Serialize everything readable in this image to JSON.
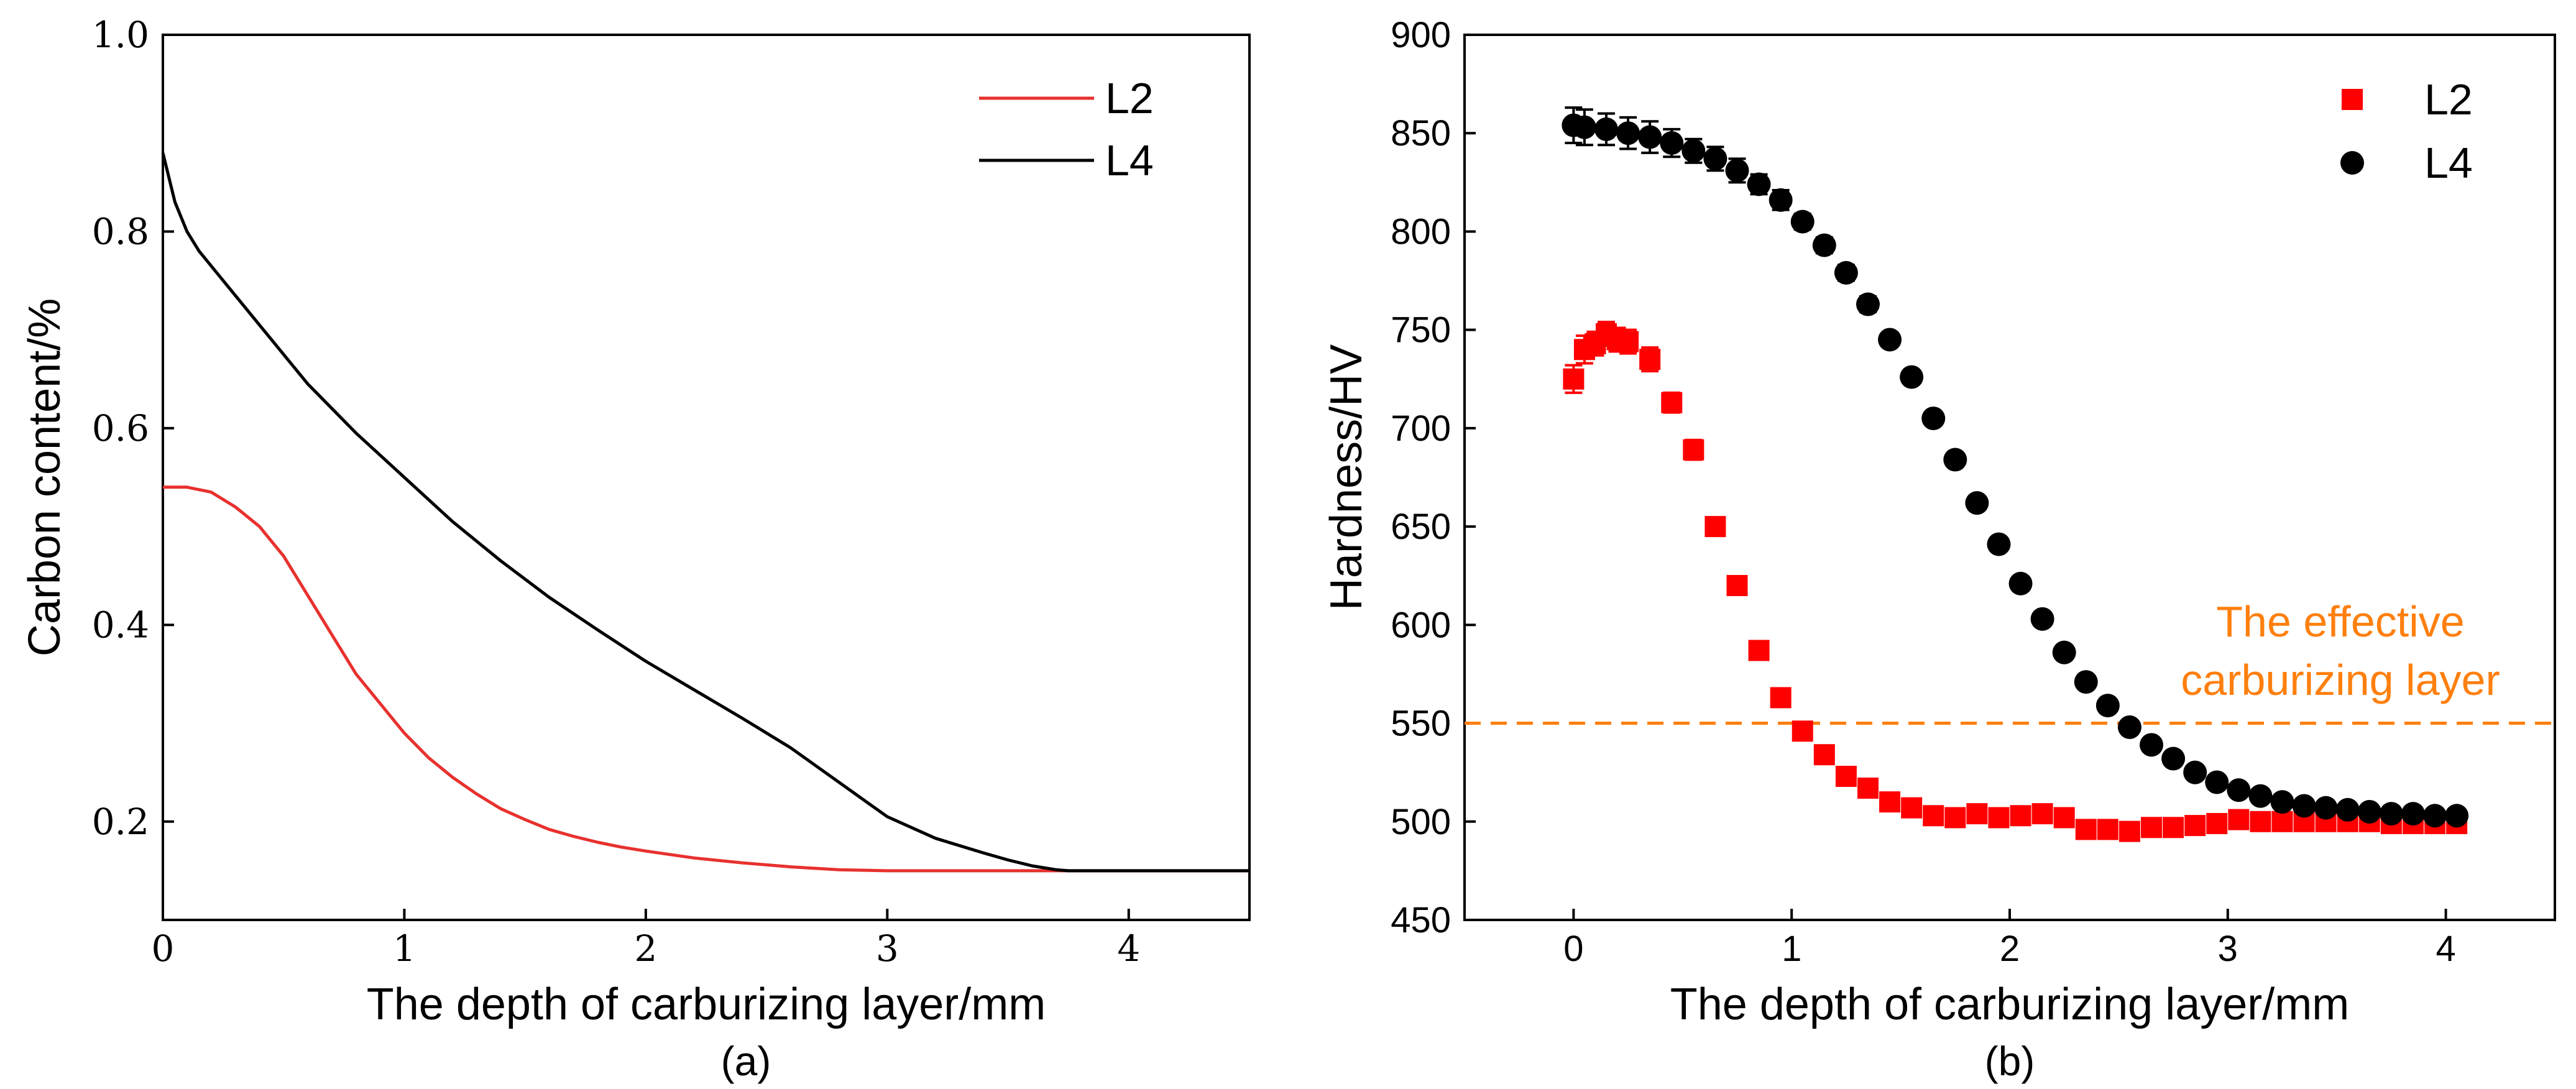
{
  "chart_data": [
    {
      "type": "line",
      "caption": "(a)",
      "xlabel": "The depth of carburizing layer/mm",
      "ylabel": "Carbon content/%",
      "xlim": [
        0,
        4.5
      ],
      "ylim": [
        0.1,
        1.0
      ],
      "xticks": [
        0,
        1,
        2,
        3,
        4
      ],
      "xtick_labels": [
        "0",
        "1",
        "2",
        "3",
        "4"
      ],
      "yticks": [
        0.2,
        0.4,
        0.6,
        0.8,
        1.0
      ],
      "ytick_labels": [
        "0.2",
        "0.4",
        "0.6",
        "0.8",
        "1.0"
      ],
      "grid": false,
      "legend": "top-right",
      "series": [
        {
          "name": "L2",
          "color": "#e8312e",
          "x": [
            0,
            0.1,
            0.2,
            0.3,
            0.4,
            0.5,
            0.6,
            0.7,
            0.8,
            0.9,
            1.0,
            1.1,
            1.2,
            1.3,
            1.4,
            1.5,
            1.6,
            1.7,
            1.8,
            1.9,
            2.0,
            2.2,
            2.4,
            2.6,
            2.8,
            3.0,
            3.2,
            3.5,
            4.0,
            4.5
          ],
          "y": [
            0.54,
            0.54,
            0.535,
            0.52,
            0.5,
            0.47,
            0.43,
            0.39,
            0.35,
            0.32,
            0.29,
            0.265,
            0.245,
            0.228,
            0.213,
            0.202,
            0.192,
            0.185,
            0.179,
            0.174,
            0.17,
            0.163,
            0.158,
            0.154,
            0.151,
            0.15,
            0.15,
            0.15,
            0.15,
            0.15
          ]
        },
        {
          "name": "L4",
          "color": "#000000",
          "x": [
            0,
            0.05,
            0.1,
            0.15,
            0.2,
            0.3,
            0.4,
            0.5,
            0.6,
            0.8,
            1.0,
            1.2,
            1.4,
            1.6,
            1.8,
            2.0,
            2.2,
            2.4,
            2.6,
            2.8,
            3.0,
            3.2,
            3.4,
            3.5,
            3.6,
            3.7,
            3.75,
            4.0,
            4.5
          ],
          "y": [
            0.88,
            0.83,
            0.8,
            0.78,
            0.765,
            0.735,
            0.705,
            0.675,
            0.645,
            0.595,
            0.55,
            0.505,
            0.465,
            0.428,
            0.395,
            0.363,
            0.334,
            0.305,
            0.275,
            0.24,
            0.205,
            0.183,
            0.168,
            0.161,
            0.155,
            0.151,
            0.15,
            0.15,
            0.15
          ]
        }
      ]
    },
    {
      "type": "scatter",
      "caption": "(b)",
      "xlabel": "The depth of carburizing layer/mm",
      "ylabel": "Hardness/HV",
      "xlim": [
        -0.5,
        4.5
      ],
      "ylim": [
        450,
        900
      ],
      "xticks": [
        0,
        1,
        2,
        3,
        4
      ],
      "xtick_labels": [
        "0",
        "1",
        "2",
        "3",
        "4"
      ],
      "yticks": [
        450,
        500,
        550,
        600,
        650,
        700,
        750,
        800,
        850,
        900
      ],
      "ytick_labels": [
        "450",
        "500",
        "550",
        "600",
        "650",
        "700",
        "750",
        "800",
        "850",
        "900"
      ],
      "grid": false,
      "legend": "top-right",
      "reference_line": {
        "y": 550,
        "style": "dashed",
        "color": "#ff7f0e",
        "label_lines": [
          "The effective",
          "carburizing layer"
        ]
      },
      "series": [
        {
          "name": "L2",
          "marker": "square",
          "color": "#ff0000",
          "x": [
            0,
            0.05,
            0.1,
            0.15,
            0.2,
            0.25,
            0.35,
            0.45,
            0.55,
            0.65,
            0.75,
            0.85,
            0.95,
            1.05,
            1.15,
            1.25,
            1.35,
            1.45,
            1.55,
            1.65,
            1.75,
            1.85,
            1.95,
            2.05,
            2.15,
            2.25,
            2.35,
            2.45,
            2.55,
            2.65,
            2.75,
            2.85,
            2.95,
            3.05,
            3.15,
            3.25,
            3.35,
            3.45,
            3.55,
            3.65,
            3.75,
            3.85,
            3.95,
            4.05
          ],
          "y": [
            725,
            740,
            743,
            748,
            745,
            744,
            735,
            713,
            689,
            650,
            620,
            587,
            563,
            546,
            534,
            523,
            517,
            510,
            507,
            503,
            502,
            504,
            502,
            503,
            504,
            502,
            496,
            496,
            495,
            497,
            497,
            498,
            499,
            501,
            500,
            500,
            500,
            500,
            500,
            500,
            499,
            499,
            499,
            499
          ],
          "error": [
            7,
            7,
            6,
            6,
            6,
            6,
            6,
            5,
            5,
            4,
            4,
            4,
            3,
            3,
            3,
            3,
            3,
            3,
            3,
            3,
            3,
            3,
            3,
            3,
            3,
            3,
            3,
            3,
            3,
            3,
            3,
            3,
            3,
            3,
            3,
            3,
            3,
            3,
            3,
            3,
            3,
            3,
            3,
            3
          ]
        },
        {
          "name": "L4",
          "marker": "circle",
          "color": "#000000",
          "x": [
            0,
            0.05,
            0.15,
            0.25,
            0.35,
            0.45,
            0.55,
            0.65,
            0.75,
            0.85,
            0.95,
            1.05,
            1.15,
            1.25,
            1.35,
            1.45,
            1.55,
            1.65,
            1.75,
            1.85,
            1.95,
            2.05,
            2.15,
            2.25,
            2.35,
            2.45,
            2.55,
            2.65,
            2.75,
            2.85,
            2.95,
            3.05,
            3.15,
            3.25,
            3.35,
            3.45,
            3.55,
            3.65,
            3.75,
            3.85,
            3.95,
            4.05
          ],
          "y": [
            854,
            853,
            852,
            850,
            848,
            845,
            841,
            837,
            831,
            824,
            816,
            805,
            793,
            779,
            763,
            745,
            726,
            705,
            684,
            662,
            641,
            621,
            603,
            586,
            571,
            559,
            548,
            539,
            532,
            525,
            520,
            516,
            513,
            510,
            508,
            507,
            506,
            505,
            504,
            504,
            503,
            503
          ],
          "error": [
            9,
            9,
            8,
            8,
            8,
            7,
            6,
            6,
            6,
            5,
            5,
            4,
            4,
            4,
            4,
            3,
            3,
            3,
            3,
            3,
            3,
            3,
            3,
            3,
            3,
            3,
            3,
            3,
            3,
            3,
            3,
            3,
            3,
            3,
            3,
            3,
            3,
            3,
            3,
            3,
            3,
            3
          ]
        }
      ]
    }
  ]
}
